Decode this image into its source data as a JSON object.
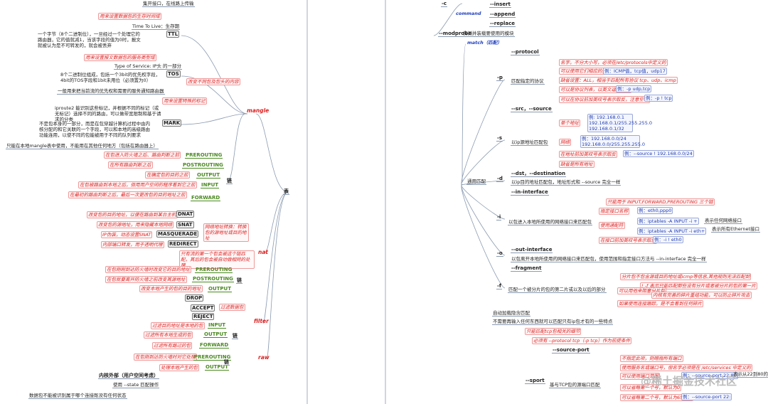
{
  "nodes": [
    "集开接口，在线路上传输",
    "用来设置数据包的生存时间域",
    "Time To Live：生存期",
    "TTL",
    "一个字节（8个二进制位），一旦经过一个处理它的路由器，它的值就减1，当该字段的值为0时，报文就被认为是不可转发的，就会被丢弃",
    "用来设置报文数据包的服务类型域",
    "Type of Service: IP头 的一部分",
    "TOS",
    "8个二进制位组成，包括一个3bit的优先权字段，4bit的TOS字段和1bit未用位（必须置为0）",
    "一般用来把当前流的优先权和需要的服务通知路由器",
    "改变不同包及包头的内容",
    "用来设置特殊的标记",
    "iproute2 能识别这些标记，并根据不同的标记（或无标记）选择不同的路由，可以做带宽限制和基于请求的分类",
    "MARK",
    "不是包本身的一部分，而是在包穿越计算机过程中由内核分配的和它关联的一个字段，可以和本地的高级路由功能连用，以使不同的包能被用于不同的队列要求",
    "只能在本地mangle表中使用，不能用在其他任何地方（包括在路由器上）",
    "mangle",
    "在包进入防火墙之后、路由判断之前",
    "PREROUTING",
    "在所有路由判断之后",
    "POSTROUTING",
    "在确定包的目的之前",
    "OUTPUT",
    "在包被路由到本地之后，但用用户空间的程序看到它之前",
    "INPUT",
    "在最初的路由判断之后，最后一次更改包的目的地址之前",
    "FORWARD",
    "链",
    "改变包的目的地址，以便在路由到某台主机",
    "DNAT",
    "改变包的源地址，用来隐藏本地网络",
    "SNAT",
    "IP伪装，动态设置SNAT",
    "MASQUERADE",
    "内部端口转发，用于透明代理",
    "REDIRECT",
    "网络地址转换：转换包的源地址或目的地址",
    "只有流的第一个包会被这个链匹配，其后的包会被自动做相同的处理",
    "nat",
    "在包刚刚到达防火墙时改变它的目的地址",
    "PREROUTING",
    "在包就要离开防火墙之前改变其源地址",
    "POSTROUTING",
    "改变本地产生的包的目的地址",
    "OUTPUT",
    "链",
    "DROP",
    "ACCEPT",
    "REJECT",
    "过滤数据包",
    "filter",
    "过滤目的地址是本地的包",
    "INPUT",
    "过滤所有本地生成的包",
    "OUTPUT",
    "过滤所有路过的包",
    "FORWARD",
    "链",
    "在包刚到达防火墙时对它处理",
    "PREROUTING",
    "处理本地产生的包",
    "OUTPUT",
    "raw",
    "链",
    "表",
    "内核外部（用户空间考虑）",
    "使用 --state 匹配操作",
    "数据包不能被识别属于哪个连接既没有任何状态",
    "-c",
    "command",
    "--insert",
    "--append",
    "--replace",
    "--modprobe",
    "探测并装载要使用的模块",
    "match（匹配）",
    "--protocol",
    "-p",
    "匹配指定的协议",
    "名字，不分大小写，必须在/etc/protocols中定义的",
    "可以使用它们相应的整数值",
    "例：ICMP值，tcp值，udp17",
    "缺省设置：ALL，相当于匹配所有协议 tcp、udp、icmp",
    "可以是协议列表，以英文逗号分割",
    "例：-p udp,tcp",
    "可以在协议前加英叹号表示取反，注意空格",
    "例：-p ! tcp",
    "--src，--source",
    "-s",
    "以ip源地址匹配包",
    "单个地址",
    "例: 192.168.0.1 192.168.0.1/255.255.255.0 192.168.0.1/32",
    "网络",
    "例：192.168.0.0/24 192.168.0.0/255.255.255.0",
    "在地址前加英叹号表示取反",
    "例：--source ! 192.168.0.0/24",
    "缺省是所有地址",
    "通用匹配",
    "--dst，--destination",
    "-d",
    "以ip目的地址匹配包，地址形式和 --source 完全一样",
    "--in-interface",
    "-i",
    "以包进入本地所使用的网络接口来匹配包",
    "只能用于 INPUT,FORWARD,PREROUTING 三个链",
    "指定接口名称",
    "例：eth0,ppp0",
    "使用通配符",
    "例：iptables -A INPUT -i +",
    "表示任何网络接口",
    "例：iptables -A INPUT -i eth+",
    "表示所有Ethernet接口",
    "在接口前加英叹号表示取反",
    "例：-i ! eth0",
    "--out-interface",
    "-o",
    "以包离开本地所使用的网络接口来匹配包，使用范围和指定接口方法与 --in-interface 完全一样",
    "--fragment",
    "-f",
    "匹配一个被分片的包的第二片或以及以后的部分",
    "分片包不包含源或目的地址或icmp等信息,其他规则无法匹配到",
    "! -f 表示只能匹配那些没有分片或者被分片的包的第一片",
    "可以用他来阻塞分片包",
    "内核有完善的碎片重组功能，可以防止碎片攻击",
    "如果使用连接跟踪，是不会看到任何碎片",
    "自动加载隐含匹配",
    "不需要再输入任何东西就可以匹配只有ip包才有的一些特点",
    "只能匹配tcp包相关的细节",
    "必须有 --protocol tcp（-p tcp）作为前提条件",
    "--source-port",
    "--sport",
    "基与TCP包的源端口匹配",
    "不指定此项，则暗指所有端口",
    "使用服务名或端口号，但名字必须是在 /etc/services 中定义的",
    "可以使用端口范围",
    "例：--source-port 22:80",
    "表示从22到80的",
    "可以省略第一个号，默认为0",
    "可以省略第二个号，默认为65535",
    "例：--source-port 22:",
    "@稀土掘金技术社区"
  ]
}
